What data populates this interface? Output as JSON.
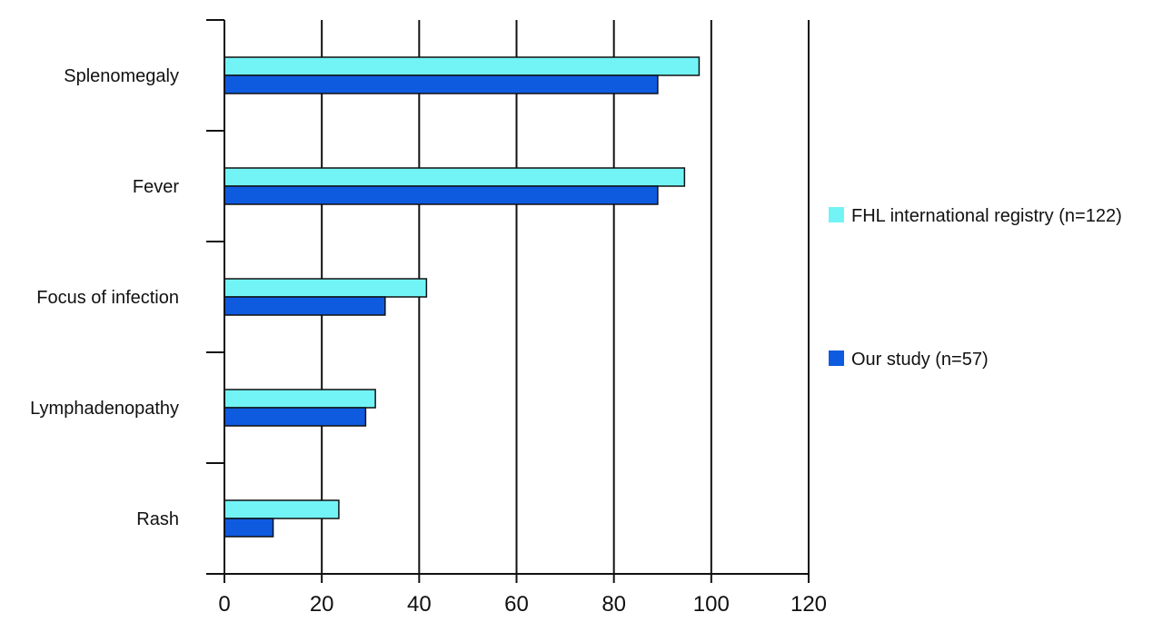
{
  "chart_data": {
    "type": "bar",
    "orientation": "horizontal",
    "title": "",
    "xlabel": "",
    "ylabel": "",
    "categories": [
      "Splenomegaly",
      "Fever",
      "Focus of infection",
      "Lymphadenopathy",
      "Rash"
    ],
    "series": [
      {
        "name": "FHL international registry (n=122)",
        "color": "#72F4F7",
        "values": [
          97.5,
          94.5,
          41.5,
          31,
          23.5
        ]
      },
      {
        "name": "Our study (n=57)",
        "color": "#0E5BE0",
        "values": [
          89,
          89,
          33,
          29,
          10
        ]
      }
    ],
    "xlim": [
      0,
      120
    ],
    "xticks": [
      "0",
      "20",
      "40",
      "60",
      "80",
      "100",
      "120"
    ],
    "grid": "vertical",
    "legend_position": "right"
  }
}
